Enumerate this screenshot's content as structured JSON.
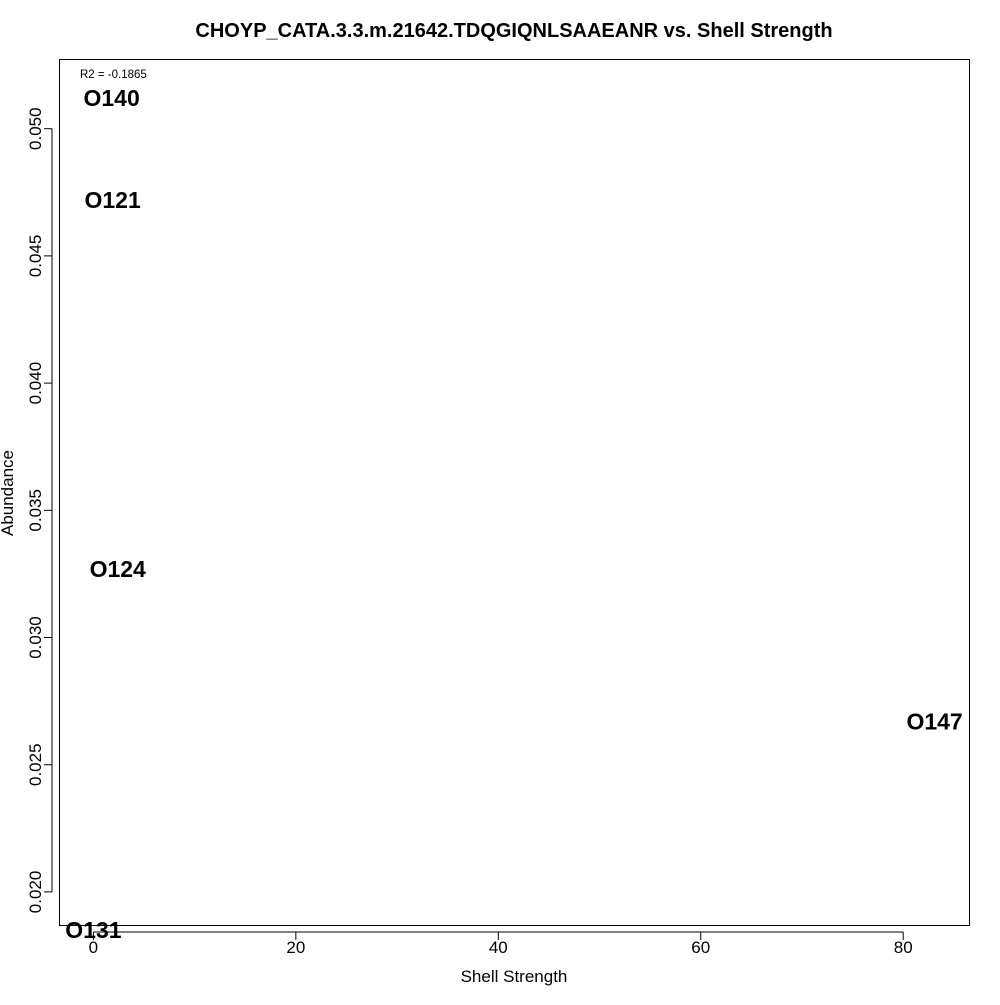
{
  "chart_data": {
    "type": "scatter",
    "title": "CHOYP_CATA.3.3.m.21642.TDQGIQNLSAAEANR vs. Shell Strength",
    "xlabel": "Shell Strength",
    "ylabel": "Abundance",
    "annotation": "R2 = -0.1865",
    "x_ticks": [
      0,
      20,
      40,
      60,
      80
    ],
    "y_ticks": [
      0.02,
      0.025,
      0.03,
      0.035,
      0.04,
      0.045,
      0.05
    ],
    "y_tick_labels": [
      "0.020",
      "0.025",
      "0.030",
      "0.035",
      "0.040",
      "0.045",
      "0.050"
    ],
    "xlim": [
      -3.3,
      86.5
    ],
    "ylim": [
      0.0187,
      0.0527
    ],
    "grid": false,
    "points": [
      {
        "label": "O140",
        "x": 1.8,
        "y": 0.0512
      },
      {
        "label": "O121",
        "x": 1.9,
        "y": 0.0472
      },
      {
        "label": "O124",
        "x": 2.4,
        "y": 0.0327
      },
      {
        "label": "O147",
        "x": 83.1,
        "y": 0.0267
      },
      {
        "label": "O131",
        "x": 0.0,
        "y": 0.0185
      }
    ]
  }
}
